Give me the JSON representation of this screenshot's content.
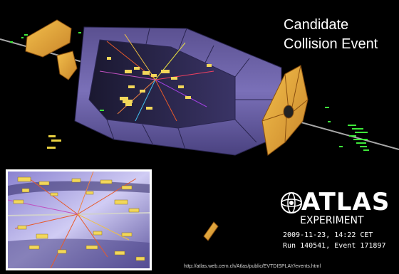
{
  "title": {
    "line1": "Candidate",
    "line2": "Collision Event"
  },
  "logo": {
    "name": "ATLAS",
    "subtitle": "EXPERIMENT"
  },
  "event_info": {
    "datetime": "2009-11-23, 14:22 CET",
    "run_event": "Run 140541, Event 171897"
  },
  "source_url": "http://atlas.web.cern.ch/Atlas/public/EVTDISPLAY/events.html",
  "colors": {
    "background": "#000000",
    "detector_barrel": "#6d63a8",
    "calorimeter_cells": "#f2d75a",
    "endcap": "#e8a93a",
    "muon_hits": "#3ee83a",
    "beam_line": "#bfbfbf",
    "tracks": "#e85a2a",
    "inset_border": "#ffffff"
  }
}
